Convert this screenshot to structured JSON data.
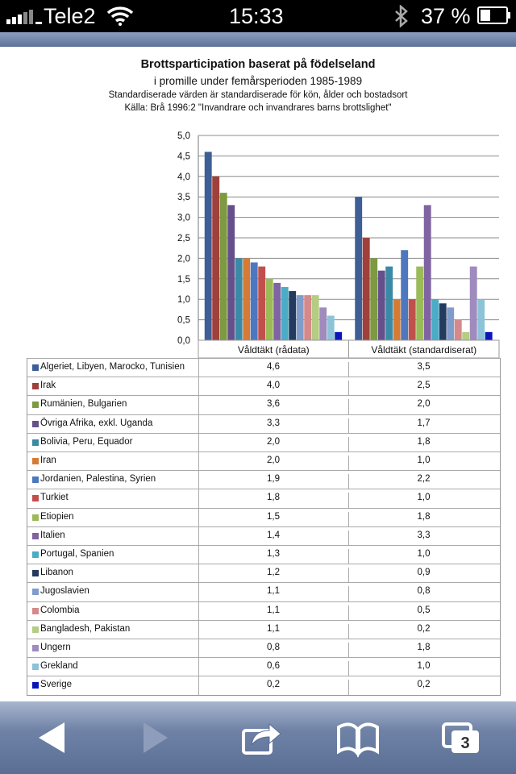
{
  "status_bar": {
    "carrier": "Tele2",
    "time": "15:33",
    "battery": "37 %"
  },
  "toolbar": {
    "icons": [
      "back-arrow-icon",
      "forward-arrow-icon",
      "share-icon",
      "bookmarks-icon",
      "tabs-icon"
    ],
    "tab_count": "3"
  },
  "chart_data": {
    "type": "bar",
    "title": "Brottsparticipation baserat på födelseland",
    "subtitle": "i promille under femårsperioden 1985-1989",
    "note": "Standardiserade värden är standardiserade för kön, ålder och bostadsort",
    "source": "Källa: Brå 1996:2  \"Invandrare och invandrares barns brottslighet\"",
    "categories": [
      "Våldtäkt (rådata)",
      "Våldtäkt (standardiserat)"
    ],
    "ylim": [
      0,
      5
    ],
    "yticks": [
      "0,0",
      "0,5",
      "1,0",
      "1,5",
      "2,0",
      "2,5",
      "3,0",
      "3,5",
      "4,0",
      "4,5",
      "5,0"
    ],
    "grid": true,
    "legend": "table-below",
    "series": [
      {
        "name": "Algeriet, Libyen, Marocko, Tunisien",
        "color": "#3E5F96",
        "values": [
          4.6,
          3.5
        ],
        "labels": [
          "4,6",
          "3,5"
        ]
      },
      {
        "name": "Irak",
        "color": "#A0403C",
        "values": [
          4.0,
          2.5
        ],
        "labels": [
          "4,0",
          "2,5"
        ]
      },
      {
        "name": "Rumänien, Bulgarien",
        "color": "#7D9A42",
        "values": [
          3.6,
          2.0
        ],
        "labels": [
          "3,6",
          "2,0"
        ]
      },
      {
        "name": "Övriga Afrika, exkl. Uganda",
        "color": "#65508C",
        "values": [
          3.3,
          1.7
        ],
        "labels": [
          "3,3",
          "1,7"
        ]
      },
      {
        "name": "Bolivia, Peru, Equador",
        "color": "#3A8AA6",
        "values": [
          2.0,
          1.8
        ],
        "labels": [
          "2,0",
          "1,8"
        ]
      },
      {
        "name": "Iran",
        "color": "#D77B34",
        "values": [
          2.0,
          1.0
        ],
        "labels": [
          "2,0",
          "1,0"
        ]
      },
      {
        "name": "Jordanien, Palestina, Syrien",
        "color": "#4D77BE",
        "values": [
          1.9,
          2.2
        ],
        "labels": [
          "1,9",
          "2,2"
        ]
      },
      {
        "name": "Turkiet",
        "color": "#C1504D",
        "values": [
          1.8,
          1.0
        ],
        "labels": [
          "1,8",
          "1,0"
        ]
      },
      {
        "name": "Etiopien",
        "color": "#9BBB59",
        "values": [
          1.5,
          1.8
        ],
        "labels": [
          "1,5",
          "1,8"
        ]
      },
      {
        "name": "Italien",
        "color": "#8064A2",
        "values": [
          1.4,
          3.3
        ],
        "labels": [
          "1,4",
          "3,3"
        ]
      },
      {
        "name": "Portugal, Spanien",
        "color": "#4BACC6",
        "values": [
          1.3,
          1.0
        ],
        "labels": [
          "1,3",
          "1,0"
        ]
      },
      {
        "name": "Libanon",
        "color": "#243A5E",
        "values": [
          1.2,
          0.9
        ],
        "labels": [
          "1,2",
          "0,9"
        ]
      },
      {
        "name": "Jugoslavien",
        "color": "#7F9CCB",
        "values": [
          1.1,
          0.8
        ],
        "labels": [
          "1,1",
          "0,8"
        ]
      },
      {
        "name": "Colombia",
        "color": "#D5898A",
        "values": [
          1.1,
          0.5
        ],
        "labels": [
          "1,1",
          "0,5"
        ]
      },
      {
        "name": "Bangladesh, Pakistan",
        "color": "#B4CC84",
        "values": [
          1.1,
          0.2
        ],
        "labels": [
          "1,1",
          "0,2"
        ]
      },
      {
        "name": "Ungern",
        "color": "#9F8BBE",
        "values": [
          0.8,
          1.8
        ],
        "labels": [
          "0,8",
          "1,8"
        ]
      },
      {
        "name": "Grekland",
        "color": "#8CC3D8",
        "values": [
          0.6,
          1.0
        ],
        "labels": [
          "0,6",
          "1,0"
        ]
      },
      {
        "name": "Sverige",
        "color": "#0A16B8",
        "values": [
          0.2,
          0.2
        ],
        "labels": [
          "0,2",
          "0,2"
        ]
      }
    ]
  }
}
